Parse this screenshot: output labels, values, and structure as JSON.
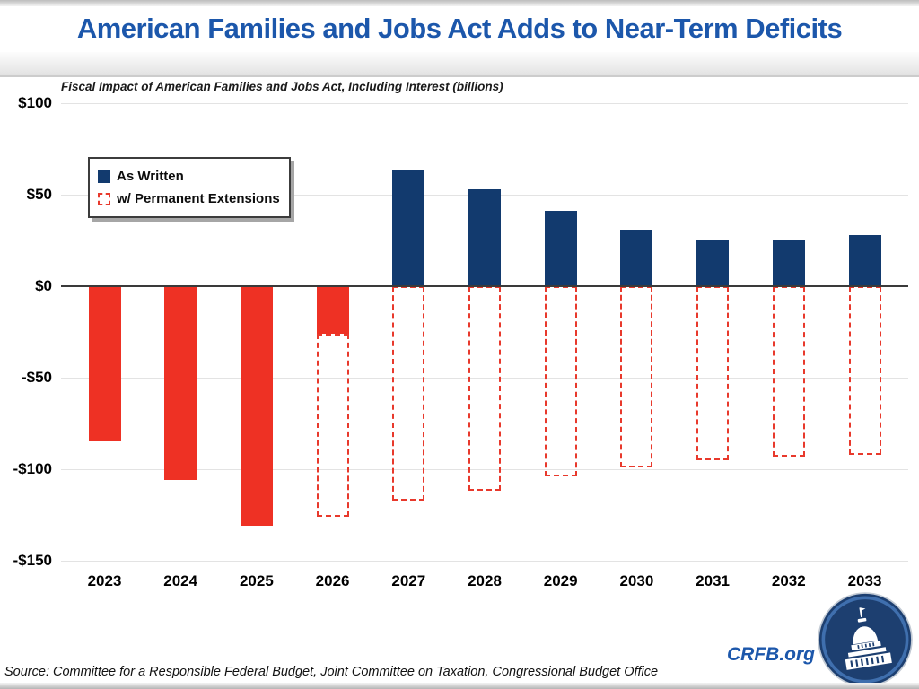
{
  "header": {
    "title": "American Families and Jobs Act Adds to Near-Term Deficits"
  },
  "chart_data": {
    "type": "bar",
    "title": "Fiscal Impact of American Families and Jobs Act, Including Interest (billions)",
    "xlabel": "",
    "ylabel": "",
    "categories": [
      "2023",
      "2024",
      "2025",
      "2026",
      "2027",
      "2028",
      "2029",
      "2030",
      "2031",
      "2032",
      "2033"
    ],
    "series": [
      {
        "name": "As Written",
        "style": "solid",
        "color_positive": "#123a6e",
        "color_negative": "#ee3124",
        "values": [
          -85,
          -106,
          -131,
          -26,
          63,
          53,
          41,
          31,
          25,
          25,
          28
        ]
      },
      {
        "name": "w/ Permanent Extensions",
        "style": "dashed-outline",
        "color": "#e8392c",
        "values": [
          null,
          null,
          null,
          -126,
          -117,
          -112,
          -104,
          -99,
          -95,
          -93,
          -92
        ]
      }
    ],
    "ylim": [
      -150,
      100
    ],
    "yticks": [
      {
        "value": 100,
        "label": "$100"
      },
      {
        "value": 50,
        "label": "$50"
      },
      {
        "value": 0,
        "label": "$0"
      },
      {
        "value": -50,
        "label": "-$50"
      },
      {
        "value": -100,
        "label": "-$100"
      },
      {
        "value": -150,
        "label": "-$150"
      }
    ],
    "grid": "horizontal",
    "legend_position": "top-left"
  },
  "footer": {
    "source": "Source: Committee for a Responsible Federal Budget, Joint Committee on Taxation, Congressional Budget Office",
    "brand": "CRFB.org"
  },
  "colors": {
    "title_blue": "#1c57ab",
    "bar_navy": "#123a6e",
    "bar_red": "#ee3124",
    "dashed_red": "#e8392c",
    "gridline": "#e3e3e3",
    "zero_line": "#3a3a3a",
    "logo_navy": "#1d3f70",
    "logo_ring_blue": "#3f6fae"
  }
}
